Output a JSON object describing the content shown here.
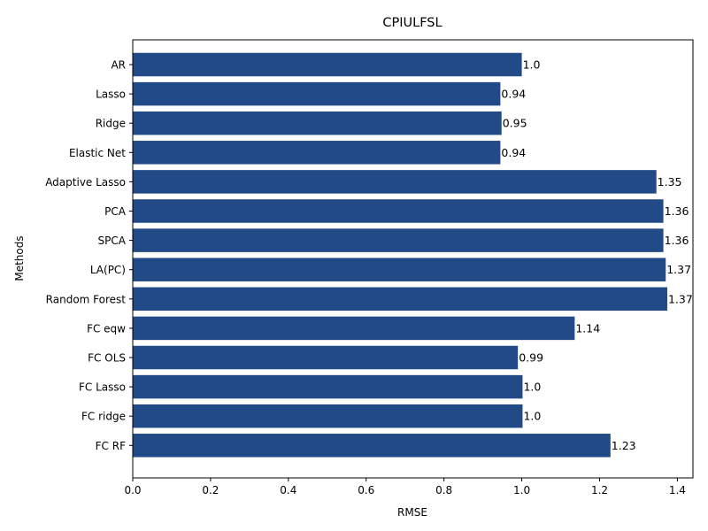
{
  "chart_data": {
    "type": "bar",
    "orientation": "horizontal",
    "title": "CPIULFSL",
    "xlabel": "RMSE",
    "ylabel": "Methods",
    "xlim": [
      0,
      1.44
    ],
    "xticks": [
      "0.0",
      "0.2",
      "0.4",
      "0.6",
      "0.8",
      "1.0",
      "1.2",
      "1.4"
    ],
    "grid": false,
    "bar_color": "#214a87",
    "categories": [
      "AR",
      "Lasso",
      "Ridge",
      "Elastic Net",
      "Adaptive Lasso",
      "PCA",
      "SPCA",
      "LA(PC)",
      "Random Forest",
      "FC eqw",
      "FC OLS",
      "FC Lasso",
      "FC ridge",
      "FC RF"
    ],
    "values": [
      1.0,
      0.945,
      0.948,
      0.945,
      1.346,
      1.364,
      1.364,
      1.37,
      1.374,
      1.136,
      0.99,
      1.002,
      1.002,
      1.228
    ],
    "value_labels": [
      "1.0",
      "0.94",
      "0.95",
      "0.94",
      "1.35",
      "1.36",
      "1.36",
      "1.37",
      "1.37",
      "1.14",
      "0.99",
      "1.0",
      "1.0",
      "1.23"
    ]
  }
}
